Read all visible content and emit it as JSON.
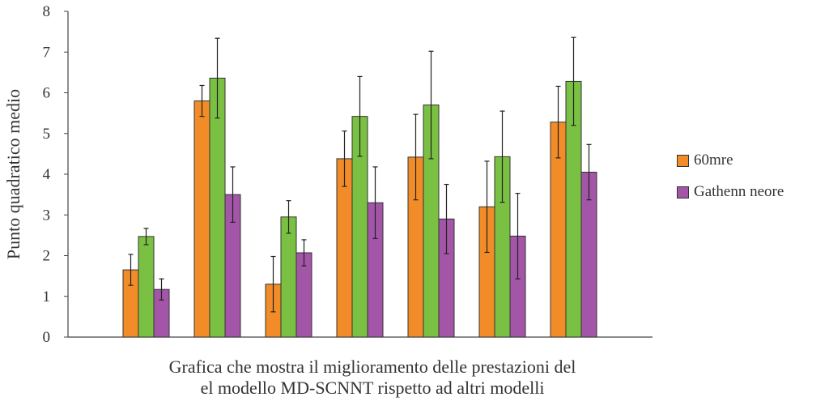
{
  "chart_data": {
    "type": "bar",
    "title": "",
    "caption_line1": "Grafica che mostra il miglioramento delle prestazioni del",
    "caption_line2": "el modello MD-SCNNT rispetto ad altri modelli",
    "ylabel": "Punto quadratico medio",
    "xlabel": "",
    "ylim": [
      0,
      8
    ],
    "yticks": [
      0,
      1,
      2,
      3,
      4,
      5,
      6,
      7,
      8
    ],
    "categories": [
      "",
      "",
      "",
      "",
      "",
      "",
      ""
    ],
    "series": [
      {
        "name": "60mre",
        "color": "#f28c28",
        "values": [
          1.65,
          5.8,
          1.3,
          4.38,
          4.42,
          3.2,
          5.28
        ],
        "errors": [
          0.38,
          0.38,
          0.68,
          0.68,
          1.05,
          1.12,
          0.88
        ]
      },
      {
        "name": "",
        "color": "#7ac143",
        "values": [
          2.47,
          6.36,
          2.95,
          5.42,
          5.7,
          4.43,
          6.28
        ],
        "errors": [
          0.2,
          0.98,
          0.4,
          0.98,
          1.32,
          1.12,
          1.08
        ]
      },
      {
        "name": "Gathenn neore",
        "color": "#a355a8",
        "values": [
          1.17,
          3.5,
          2.07,
          3.3,
          2.9,
          2.48,
          4.05
        ],
        "errors": [
          0.26,
          0.68,
          0.32,
          0.88,
          0.85,
          1.05,
          0.68
        ]
      }
    ],
    "grid": false,
    "legend_position": "right"
  }
}
